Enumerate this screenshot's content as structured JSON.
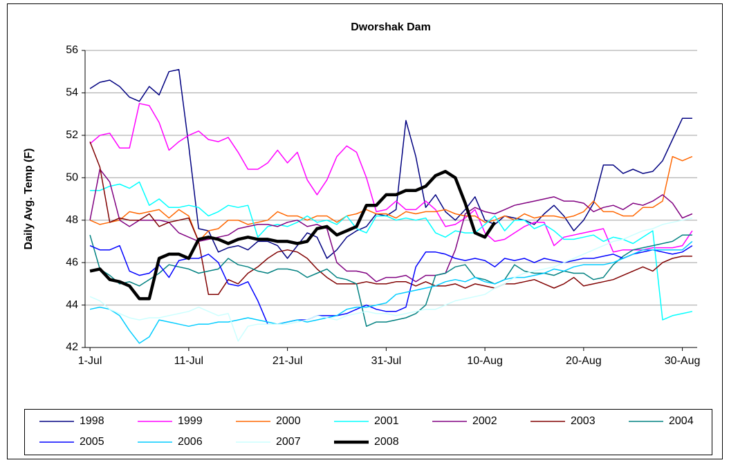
{
  "chart_data": {
    "type": "line",
    "title": "Dworshak Dam",
    "y_label": "Daily Avg. Temp (F)",
    "categories": [
      "1-Jul",
      null,
      null,
      null,
      null,
      null,
      null,
      null,
      null,
      null,
      "11-Jul",
      null,
      null,
      null,
      null,
      null,
      null,
      null,
      null,
      null,
      "21-Jul",
      null,
      null,
      null,
      null,
      null,
      null,
      null,
      null,
      null,
      "31-Jul",
      null,
      null,
      null,
      null,
      null,
      null,
      null,
      null,
      null,
      "10-Aug",
      null,
      null,
      null,
      null,
      null,
      null,
      null,
      null,
      null,
      "20-Aug",
      null,
      null,
      null,
      null,
      null,
      null,
      null,
      null,
      null,
      "30-Aug",
      null
    ],
    "ylim": [
      42,
      56
    ],
    "yticks": [
      42,
      44,
      46,
      48,
      50,
      52,
      54,
      56
    ],
    "grid": true,
    "legend": "bottom",
    "series": [
      {
        "name": "1998",
        "color": "#000080",
        "line_width": 1.5,
        "values": [
          54.2,
          54.5,
          54.6,
          54.3,
          53.8,
          53.6,
          54.3,
          53.9,
          55.0,
          55.1,
          51.5,
          47.6,
          47.5,
          46.5,
          46.7,
          46.8,
          46.6,
          47.0,
          47.0,
          46.8,
          46.2,
          46.8,
          47.4,
          47.2,
          46.2,
          46.6,
          47.2,
          47.5,
          47.7,
          48.3,
          48.2,
          48.5,
          52.7,
          51.0,
          48.6,
          49.2,
          48.4,
          48.0,
          48.5,
          49.1,
          48.0,
          47.8,
          48.2,
          48.1,
          48.0,
          47.8,
          48.3,
          48.7,
          48.2,
          47.5,
          48.0,
          48.8,
          50.6,
          50.6,
          50.2,
          50.4,
          50.2,
          50.3,
          50.8,
          51.8,
          52.8,
          52.8
        ]
      },
      {
        "name": "1999",
        "color": "#ff00ff",
        "line_width": 1.5,
        "values": [
          51.6,
          52.0,
          52.1,
          51.4,
          51.4,
          53.5,
          53.4,
          52.6,
          51.3,
          51.7,
          52.0,
          52.2,
          51.8,
          51.7,
          51.9,
          51.2,
          50.4,
          50.4,
          50.7,
          51.3,
          50.7,
          51.2,
          49.9,
          49.2,
          49.9,
          51.0,
          51.5,
          51.2,
          50.0,
          48.4,
          48.5,
          48.9,
          48.5,
          48.5,
          48.9,
          48.5,
          47.7,
          47.8,
          48.1,
          48.5,
          47.4,
          47.0,
          47.1,
          47.4,
          47.7,
          47.9,
          47.9,
          46.8,
          47.2,
          47.3,
          47.4,
          47.5,
          47.6,
          46.5,
          46.6,
          46.6,
          46.6,
          46.7,
          46.7,
          46.7,
          46.8,
          47.5
        ]
      },
      {
        "name": "2000",
        "color": "#ff6600",
        "line_width": 1.5,
        "values": [
          48.0,
          47.8,
          47.9,
          48.0,
          48.4,
          48.3,
          48.4,
          48.5,
          48.1,
          48.5,
          48.2,
          47.0,
          47.5,
          47.6,
          48.0,
          48.0,
          47.8,
          47.9,
          48.0,
          48.4,
          48.2,
          48.2,
          48.0,
          48.2,
          48.2,
          47.9,
          48.2,
          48.3,
          48.5,
          48.3,
          48.3,
          48.1,
          48.4,
          48.3,
          48.4,
          48.4,
          48.5,
          48.3,
          48.2,
          48.2,
          47.9,
          48.0,
          48.2,
          48.0,
          48.3,
          48.1,
          48.2,
          48.2,
          48.1,
          48.2,
          48.4,
          48.9,
          48.4,
          48.4,
          48.2,
          48.2,
          48.6,
          48.6,
          48.9,
          51.0,
          50.8,
          51.0
        ]
      },
      {
        "name": "2001",
        "color": "#00ffff",
        "line_width": 1.5,
        "values": [
          49.4,
          49.4,
          49.6,
          49.7,
          49.5,
          49.8,
          48.7,
          49.0,
          48.6,
          48.6,
          48.7,
          48.6,
          48.2,
          48.4,
          48.7,
          48.6,
          48.7,
          47.2,
          47.7,
          47.8,
          47.7,
          47.9,
          48.2,
          47.9,
          48.0,
          47.8,
          48.2,
          47.6,
          47.4,
          48.2,
          48.2,
          48.0,
          48.1,
          48.0,
          48.1,
          47.4,
          47.2,
          47.5,
          47.4,
          47.4,
          47.8,
          48.2,
          47.5,
          48.0,
          48.0,
          47.6,
          47.8,
          47.5,
          47.1,
          47.1,
          47.2,
          47.3,
          47.0,
          47.2,
          47.1,
          46.9,
          47.2,
          47.5,
          43.3,
          43.5,
          43.6,
          43.7
        ]
      },
      {
        "name": "2002",
        "color": "#800080",
        "line_width": 1.5,
        "values": [
          48.0,
          50.4,
          49.8,
          48.0,
          47.7,
          48.0,
          48.0,
          48.0,
          47.9,
          47.4,
          47.2,
          47.0,
          47.1,
          47.2,
          47.3,
          47.6,
          47.7,
          47.8,
          47.8,
          47.7,
          47.9,
          48.0,
          47.7,
          47.8,
          47.6,
          46.0,
          45.6,
          45.6,
          45.5,
          45.1,
          45.3,
          45.3,
          45.4,
          45.1,
          45.4,
          45.4,
          45.5,
          46.6,
          48.3,
          48.6,
          48.4,
          48.3,
          48.5,
          48.7,
          48.8,
          48.9,
          49.0,
          49.1,
          48.9,
          48.9,
          48.8,
          48.4,
          48.6,
          48.7,
          48.5,
          48.8,
          48.7,
          48.9,
          49.2,
          48.8,
          48.1,
          48.3
        ]
      },
      {
        "name": "2003",
        "color": "#800000",
        "line_width": 1.5,
        "values": [
          51.7,
          50.5,
          47.9,
          48.1,
          48.0,
          48.0,
          48.3,
          47.7,
          47.9,
          48.0,
          48.1,
          47.0,
          44.5,
          44.5,
          45.2,
          45.0,
          45.5,
          45.8,
          46.2,
          46.5,
          46.6,
          46.5,
          46.2,
          45.7,
          45.3,
          45.0,
          45.0,
          45.0,
          45.1,
          45.0,
          45.0,
          45.1,
          45.1,
          44.9,
          45.1,
          44.9,
          44.9,
          45.0,
          44.8,
          45.0,
          44.9,
          44.8,
          45.0,
          45.0,
          45.1,
          45.2,
          45.0,
          44.8,
          45.0,
          45.3,
          44.9,
          45.0,
          45.1,
          45.2,
          45.4,
          45.6,
          45.8,
          45.6,
          46.0,
          46.2,
          46.3,
          46.3
        ]
      },
      {
        "name": "2004",
        "color": "#008080",
        "line_width": 1.5,
        "values": [
          47.3,
          45.7,
          45.4,
          45.0,
          45.1,
          44.9,
          45.2,
          45.5,
          45.9,
          45.8,
          45.7,
          45.5,
          45.6,
          45.7,
          46.2,
          45.9,
          45.8,
          45.6,
          45.5,
          45.7,
          45.7,
          45.6,
          45.3,
          45.5,
          45.7,
          45.3,
          45.2,
          45.0,
          43.0,
          43.2,
          43.2,
          43.3,
          43.4,
          43.6,
          44.0,
          45.4,
          45.5,
          45.8,
          45.9,
          45.3,
          45.2,
          45.0,
          45.2,
          45.9,
          45.6,
          45.5,
          45.5,
          45.4,
          45.6,
          45.5,
          45.5,
          45.2,
          45.3,
          45.9,
          46.3,
          46.6,
          46.7,
          46.8,
          46.9,
          47.0,
          47.3,
          47.3
        ]
      },
      {
        "name": "2005",
        "color": "#0000ff",
        "line_width": 1.5,
        "values": [
          46.8,
          46.6,
          46.6,
          46.8,
          45.6,
          45.4,
          45.5,
          45.9,
          45.3,
          46.1,
          46.2,
          46.2,
          46.4,
          46.0,
          45.0,
          44.9,
          45.1,
          44.2,
          43.1,
          43.1,
          43.2,
          43.3,
          43.3,
          43.5,
          43.5,
          43.5,
          43.6,
          43.8,
          44.0,
          43.8,
          43.7,
          43.7,
          43.9,
          45.8,
          46.5,
          46.5,
          46.4,
          46.2,
          46.1,
          46.2,
          46.1,
          45.8,
          46.2,
          46.1,
          46.2,
          46.0,
          46.2,
          46.1,
          46.0,
          46.1,
          46.2,
          46.2,
          46.3,
          46.4,
          46.2,
          46.4,
          46.5,
          46.6,
          46.5,
          46.4,
          46.5,
          46.8
        ]
      },
      {
        "name": "2006",
        "color": "#00ccff",
        "line_width": 1.5,
        "values": [
          43.8,
          43.9,
          43.8,
          43.5,
          42.8,
          42.2,
          42.5,
          43.3,
          43.2,
          43.1,
          43.0,
          43.1,
          43.1,
          43.2,
          43.2,
          43.3,
          43.4,
          43.3,
          43.2,
          43.1,
          43.2,
          43.3,
          43.2,
          43.3,
          43.4,
          43.5,
          43.8,
          43.9,
          43.9,
          44.0,
          44.1,
          44.5,
          44.6,
          44.7,
          44.8,
          44.9,
          45.1,
          45.2,
          45.1,
          45.3,
          45.1,
          45.0,
          45.2,
          45.3,
          45.3,
          45.4,
          45.5,
          45.7,
          45.6,
          45.8,
          45.9,
          45.9,
          45.9,
          46.0,
          46.2,
          46.4,
          46.6,
          46.6,
          46.6,
          46.6,
          46.6,
          47.0
        ]
      },
      {
        "name": "2007",
        "color": "#ccffff",
        "line_width": 1.5,
        "values": [
          44.4,
          44.2,
          43.8,
          43.6,
          43.4,
          43.3,
          43.4,
          43.4,
          43.5,
          43.6,
          43.7,
          43.9,
          43.7,
          43.5,
          43.6,
          42.3,
          43.0,
          43.1,
          43.1,
          43.1,
          43.1,
          43.2,
          43.3,
          43.5,
          43.4,
          43.3,
          43.5,
          43.6,
          43.7,
          43.6,
          43.6,
          43.5,
          43.6,
          43.7,
          43.8,
          43.8,
          44.0,
          44.2,
          44.3,
          44.4,
          44.5,
          44.8,
          45.0,
          45.3,
          45.5,
          45.6,
          45.7,
          45.8,
          46.0,
          46.2,
          46.4,
          46.6,
          46.8,
          47.0,
          47.1,
          47.3,
          47.5,
          47.6,
          47.8,
          47.9,
          48.0,
          48.1
        ]
      },
      {
        "name": "2008",
        "color": "#000000",
        "line_width": 4.5,
        "values": [
          45.6,
          45.7,
          45.2,
          45.1,
          44.9,
          44.3,
          44.3,
          46.2,
          46.4,
          46.4,
          46.2,
          47.1,
          47.2,
          47.1,
          46.9,
          47.1,
          47.2,
          47.1,
          47.1,
          47.0,
          47.0,
          46.9,
          47.0,
          47.6,
          47.7,
          47.3,
          47.5,
          47.7,
          48.7,
          48.7,
          49.2,
          49.2,
          49.4,
          49.4,
          49.6,
          50.1,
          50.3,
          50.0,
          48.8,
          47.4,
          47.2,
          47.9,
          null,
          null,
          null,
          null,
          null,
          null,
          null,
          null,
          null,
          null,
          null,
          null,
          null,
          null,
          null,
          null,
          null,
          null,
          null,
          null
        ]
      }
    ]
  }
}
